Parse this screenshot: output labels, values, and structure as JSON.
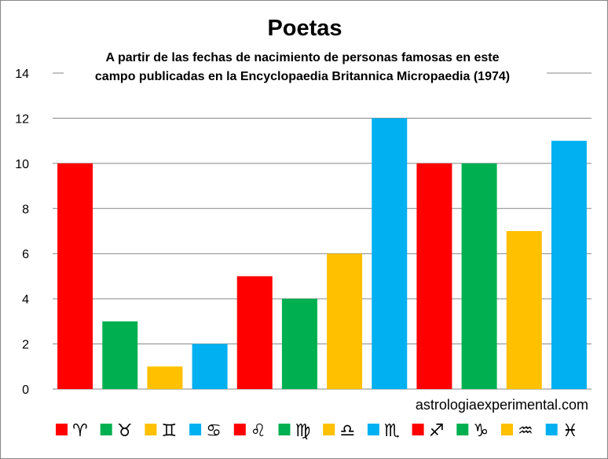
{
  "chart_data": {
    "type": "bar",
    "title": "Poetas",
    "subtitle_lines": [
      "A partir de las fechas de nacimiento de personas famosas en este",
      "campo publicadas en la Encyclopaedia Britannica Micropaedia (1974)"
    ],
    "categories": [
      "Aries",
      "Taurus",
      "Gemini",
      "Cancer",
      "Leo",
      "Virgo",
      "Libra",
      "Scorpio",
      "Sagittarius",
      "Capricorn",
      "Aquarius",
      "Pisces"
    ],
    "symbols": [
      "♈︎",
      "♉︎",
      "♊︎",
      "♋︎",
      "♌︎",
      "♍︎",
      "♎︎",
      "♏︎",
      "♐︎",
      "♑︎",
      "♒︎",
      "♓︎"
    ],
    "values": [
      10,
      3,
      1,
      2,
      5,
      4,
      6,
      12,
      10,
      10,
      7,
      11
    ],
    "colors": [
      "#FF0000",
      "#00B050",
      "#FFC000",
      "#00B0F0",
      "#FF0000",
      "#00B050",
      "#FFC000",
      "#00B0F0",
      "#FF0000",
      "#00B050",
      "#FFC000",
      "#00B0F0"
    ],
    "ylim": [
      0,
      14
    ],
    "yticks": [
      0,
      2,
      4,
      6,
      8,
      10,
      12,
      14
    ],
    "grid": true,
    "legend": "bottom",
    "watermark": "astrologiaexperimental.com",
    "xlabel": "",
    "ylabel": ""
  }
}
